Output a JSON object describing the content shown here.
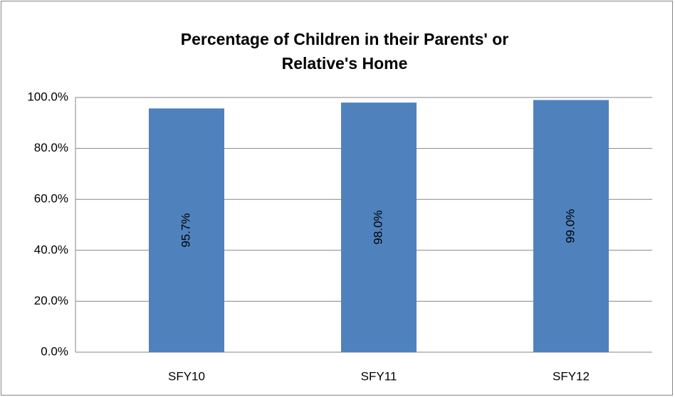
{
  "chart_data": {
    "type": "bar",
    "title": "Percentage of Children in their Parents' or Relative's Home",
    "categories": [
      "SFY10",
      "SFY11",
      "SFY12"
    ],
    "values": [
      95.7,
      98.0,
      99.0
    ],
    "value_labels": [
      "95.7%",
      "98.0%",
      "99.0%"
    ],
    "color": "#4f81bd",
    "ylim": [
      0,
      100
    ],
    "yticks": [
      {
        "value": 0,
        "label": "0.0%"
      },
      {
        "value": 20,
        "label": "20.0%"
      },
      {
        "value": 40,
        "label": "40.0%"
      },
      {
        "value": 60,
        "label": "60.0%"
      },
      {
        "value": 80,
        "label": "80.0%"
      },
      {
        "value": 100,
        "label": "100.0%"
      }
    ],
    "grid": true
  }
}
